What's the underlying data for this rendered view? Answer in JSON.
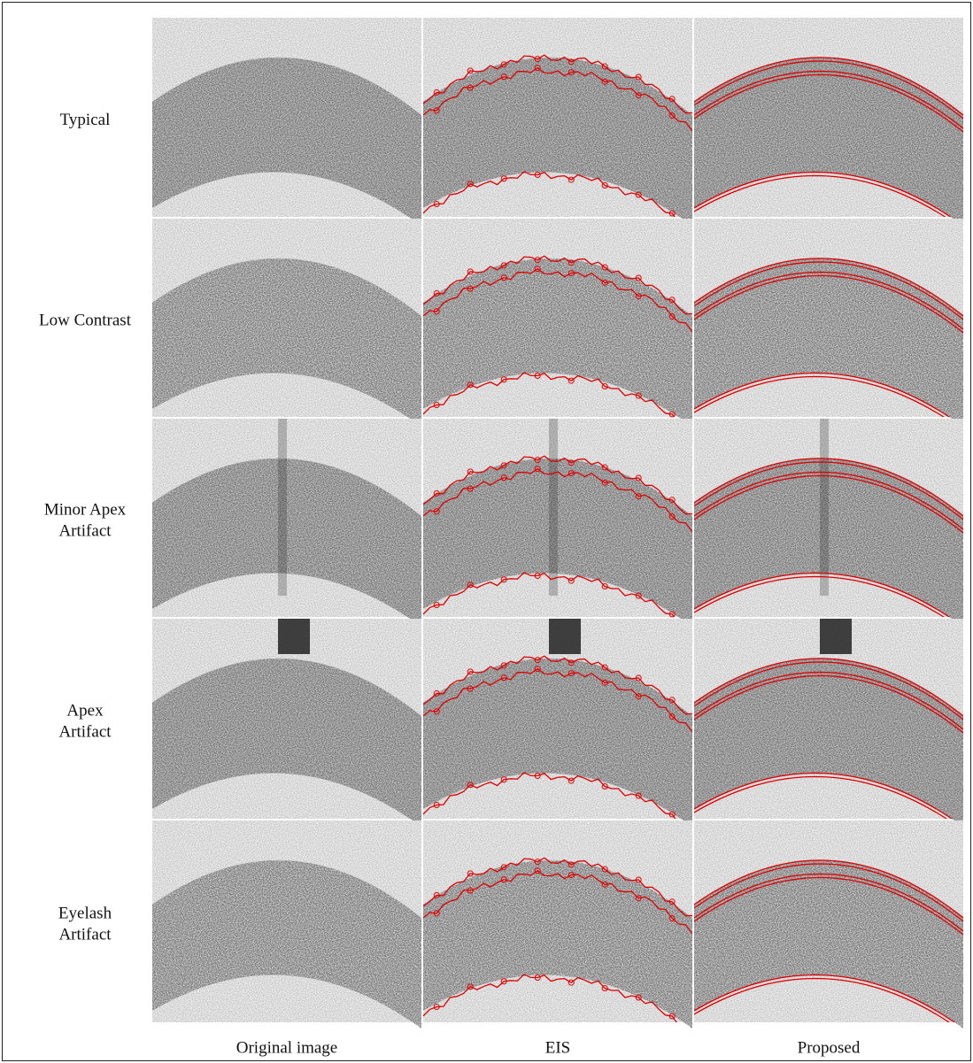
{
  "rows": [
    {
      "label": [
        "Typical"
      ]
    },
    {
      "label": [
        "Low Contrast"
      ]
    },
    {
      "label": [
        "Minor Apex",
        "Artifact"
      ]
    },
    {
      "label": [
        "Apex",
        "Artifact"
      ]
    },
    {
      "label": [
        "Eyelash",
        "Artifact"
      ]
    }
  ],
  "columns": [
    "Original image",
    "EIS",
    "Proposed"
  ]
}
